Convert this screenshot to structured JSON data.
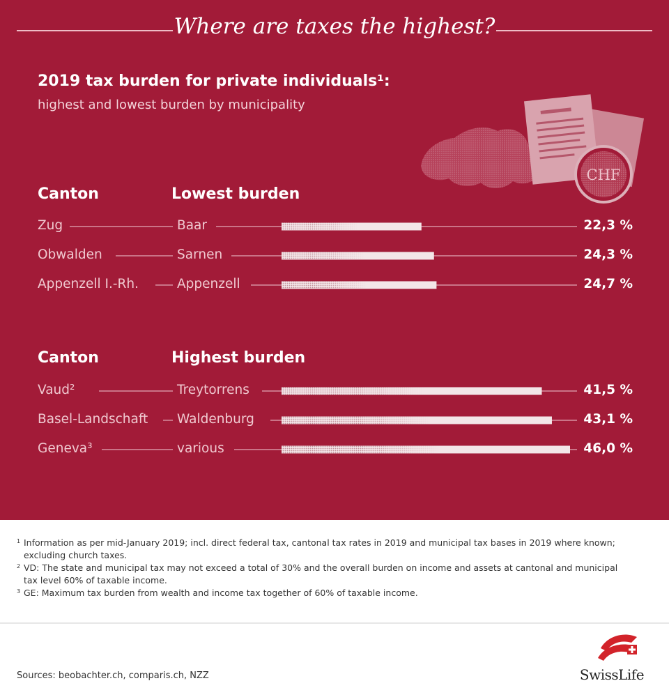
{
  "title": "Where are taxes the highest?",
  "subtitle": "2019 tax burden for private individuals¹:",
  "subtitle2": "highest and lowest burden by municipality",
  "badge_text": "CHF",
  "colors": {
    "background": "#a21b38",
    "bar": "#f3e6e8",
    "text": "#ffffff",
    "muted_text": "#f0c9d0"
  },
  "chart_data": [
    {
      "type": "bar",
      "orientation": "horizontal",
      "column_headers": [
        "Canton",
        "Lowest burden"
      ],
      "cantons": [
        "Zug",
        "Obwalden",
        "Appenzell I.-Rh."
      ],
      "categories": [
        "Baar",
        "Sarnen",
        "Appenzell"
      ],
      "values": [
        22.3,
        24.3,
        24.7
      ],
      "value_labels": [
        "22,3 %",
        "24,3 %",
        "24,7 %"
      ],
      "unit": "%"
    },
    {
      "type": "bar",
      "orientation": "horizontal",
      "column_headers": [
        "Canton",
        "Highest burden"
      ],
      "cantons": [
        "Vaud²",
        "Basel-Landschaft",
        "Geneva³"
      ],
      "categories": [
        "Treytorrens",
        "Waldenburg",
        "various"
      ],
      "values": [
        41.5,
        43.1,
        46.0
      ],
      "value_labels": [
        "41,5 %",
        "43,1 %",
        "46,0 %"
      ],
      "unit": "%"
    }
  ],
  "footnotes": [
    {
      "mark": "1",
      "text": "Information as per mid-January 2019; incl. direct federal tax, cantonal tax rates in 2019 and municipal tax bases in 2019 where known; excluding church taxes."
    },
    {
      "mark": "2",
      "text": "VD: The state and municipal tax may not exceed a total of 30% and the overall burden on income and assets at cantonal and municipal tax level 60% of taxable income."
    },
    {
      "mark": "3",
      "text": "GE: Maximum tax burden from wealth and income tax together of 60% of taxable income."
    }
  ],
  "sources": "Sources: beobachter.ch, comparis.ch, NZZ",
  "brand": "SwissLife"
}
